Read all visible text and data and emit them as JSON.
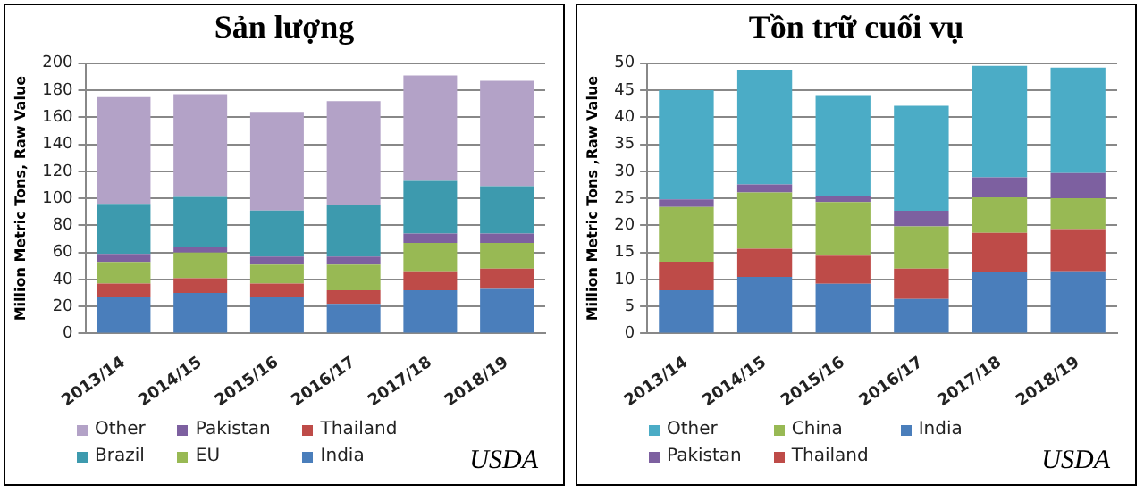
{
  "chart_data": [
    {
      "type": "bar",
      "title": "Sản lượng",
      "ylabel": "Million Metric Tons, Raw Value",
      "categories": [
        "2013/14",
        "2014/15",
        "2015/16",
        "2016/17",
        "2017/18",
        "2018/19"
      ],
      "stacked": true,
      "ylim": [
        0,
        200
      ],
      "yticks": [
        0,
        20,
        40,
        60,
        80,
        100,
        120,
        140,
        160,
        180,
        200
      ],
      "grid": "y",
      "legend": "bottom",
      "annotations": [
        "USDA"
      ],
      "series": [
        {
          "name": "India",
          "color": "#4a7ebb",
          "values": [
            27,
            30,
            27,
            22,
            32,
            33
          ]
        },
        {
          "name": "Thailand",
          "color": "#be4b48",
          "values": [
            10,
            11,
            10,
            10,
            14,
            15
          ]
        },
        {
          "name": "EU",
          "color": "#98b954",
          "values": [
            16,
            19,
            14,
            19,
            21,
            19
          ]
        },
        {
          "name": "Pakistan",
          "color": "#7d60a0",
          "values": [
            6,
            4,
            6,
            6,
            7,
            7
          ]
        },
        {
          "name": "Brazil",
          "color": "#3d9aae",
          "values": [
            37,
            37,
            34,
            38,
            39,
            35
          ]
        },
        {
          "name": "Other",
          "color": "#b3a2c7",
          "values": [
            79,
            76,
            73,
            77,
            78,
            78
          ]
        }
      ]
    },
    {
      "type": "bar",
      "title": "Tồn trữ cuối vụ",
      "ylabel": "Million Metric Tons ,Raw Value",
      "categories": [
        "2013/14",
        "2014/15",
        "2015/16",
        "2016/17",
        "2017/18",
        "2018/19"
      ],
      "stacked": true,
      "ylim": [
        0,
        50
      ],
      "yticks": [
        0,
        5,
        10,
        15,
        20,
        25,
        30,
        35,
        40,
        45,
        50
      ],
      "grid": "y",
      "legend": "bottom",
      "annotations": [
        "USDA"
      ],
      "series": [
        {
          "name": "India",
          "color": "#4a7ebb",
          "values": [
            8,
            10.5,
            9.2,
            6.4,
            11.3,
            11.5
          ]
        },
        {
          "name": "Thailand",
          "color": "#be4b48",
          "values": [
            5.3,
            5.2,
            5.2,
            5.6,
            7.3,
            7.8
          ]
        },
        {
          "name": "China",
          "color": "#98b954",
          "values": [
            10.1,
            10.4,
            9.9,
            7.8,
            6.6,
            5.7
          ]
        },
        {
          "name": "Pakistan",
          "color": "#7d60a0",
          "values": [
            1.4,
            1.5,
            1.2,
            2.9,
            3.7,
            4.7
          ]
        },
        {
          "name": "Other",
          "color": "#4bacc6",
          "values": [
            20.2,
            21.2,
            18.6,
            19.4,
            20.6,
            19.5
          ]
        }
      ]
    }
  ]
}
